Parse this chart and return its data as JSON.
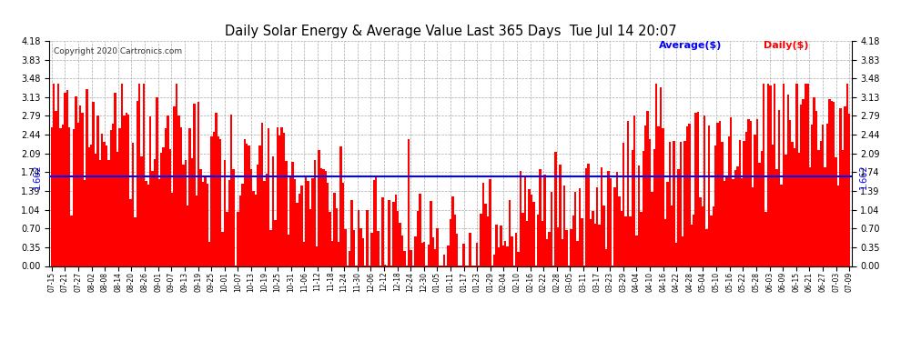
{
  "title": "Daily Solar Energy & Average Value Last 365 Days  Tue Jul 14 20:07",
  "copyright": "Copyright 2020 Cartronics.com",
  "average_value": 1.662,
  "average_label": "Average($)",
  "daily_label": "Daily($)",
  "average_color": "blue",
  "bar_color": "red",
  "ylim": [
    0.0,
    4.18
  ],
  "yticks": [
    0.0,
    0.35,
    0.7,
    1.04,
    1.39,
    1.74,
    2.09,
    2.44,
    2.79,
    3.13,
    3.48,
    3.83,
    4.18
  ],
  "background_color": "white",
  "grid_color": "#aaaaaa",
  "x_labels": [
    "07-15",
    "07-21",
    "07-27",
    "08-02",
    "08-08",
    "08-14",
    "08-20",
    "08-26",
    "09-01",
    "09-07",
    "09-13",
    "09-19",
    "09-25",
    "10-01",
    "10-07",
    "10-13",
    "10-19",
    "10-25",
    "10-31",
    "11-06",
    "11-12",
    "11-18",
    "11-24",
    "11-30",
    "12-06",
    "12-12",
    "12-18",
    "12-24",
    "12-30",
    "01-05",
    "01-11",
    "01-17",
    "01-23",
    "01-29",
    "02-04",
    "02-10",
    "02-16",
    "02-22",
    "02-28",
    "03-05",
    "03-11",
    "03-17",
    "03-23",
    "03-29",
    "04-04",
    "04-10",
    "04-16",
    "04-22",
    "04-28",
    "05-04",
    "05-10",
    "05-16",
    "05-22",
    "05-28",
    "06-03",
    "06-09",
    "06-15",
    "06-21",
    "06-27",
    "07-03",
    "07-09"
  ],
  "n_days": 365,
  "avg_line_y": 1.662
}
